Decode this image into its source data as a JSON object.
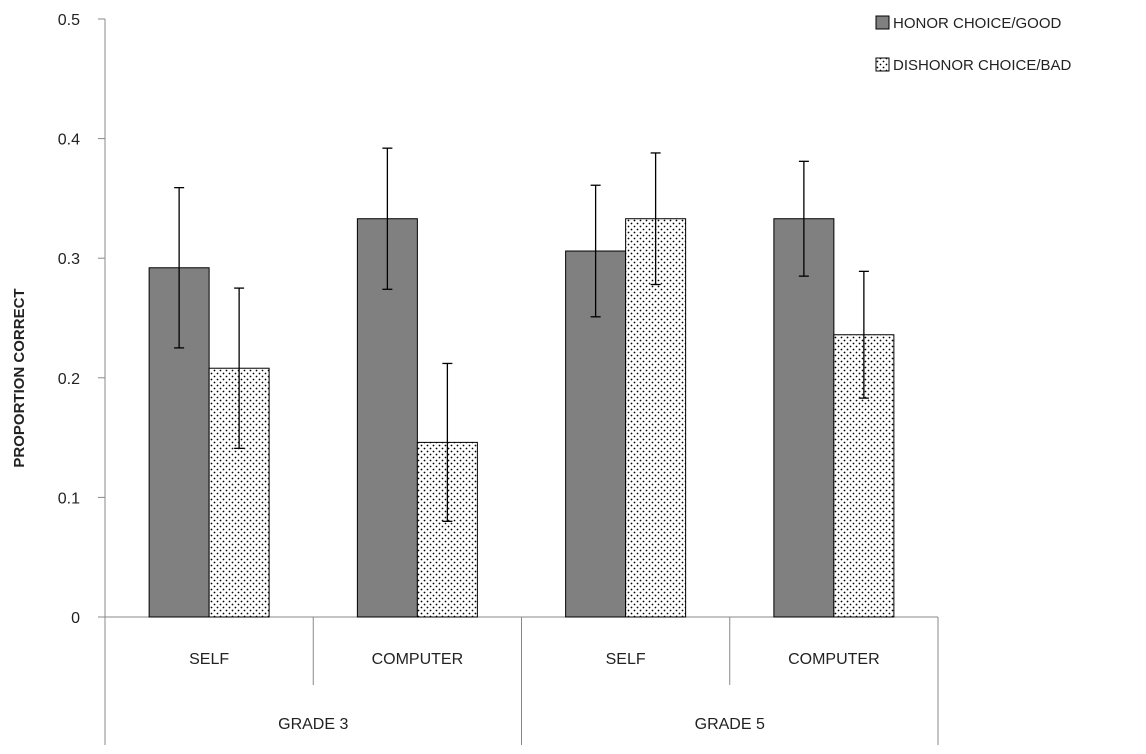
{
  "chart_data": {
    "type": "bar",
    "title": "",
    "xlabel": "",
    "ylabel": "PROPORTION CORRECT",
    "ylim": [
      0,
      0.5
    ],
    "yticks": [
      0,
      0.1,
      0.2,
      0.3,
      0.4,
      0.5
    ],
    "y_tick_labels": [
      "0",
      "0.1",
      "0.2",
      "0.3",
      "0.4",
      "0.5"
    ],
    "grid": false,
    "legend_position": "top-right",
    "groups": [
      {
        "label": "GRADE 3",
        "categories": [
          "SELF",
          "COMPUTER"
        ]
      },
      {
        "label": "GRADE 5",
        "categories": [
          "SELF",
          "COMPUTER"
        ]
      }
    ],
    "categories": [
      "SELF",
      "COMPUTER",
      "SELF",
      "COMPUTER"
    ],
    "series": [
      {
        "name": "HONOR CHOICE/GOOD",
        "pattern": "solid",
        "color": "#808080",
        "values": [
          0.292,
          0.333,
          0.306,
          0.333
        ],
        "error_low": [
          0.225,
          0.274,
          0.251,
          0.285
        ],
        "error_high": [
          0.359,
          0.392,
          0.361,
          0.381
        ]
      },
      {
        "name": "DISHONOR CHOICE/BAD",
        "pattern": "dotted",
        "color": "#ffffff",
        "values": [
          0.208,
          0.146,
          0.333,
          0.236
        ],
        "error_low": [
          0.141,
          0.08,
          0.278,
          0.183
        ],
        "error_high": [
          0.275,
          0.212,
          0.388,
          0.289
        ]
      }
    ]
  }
}
